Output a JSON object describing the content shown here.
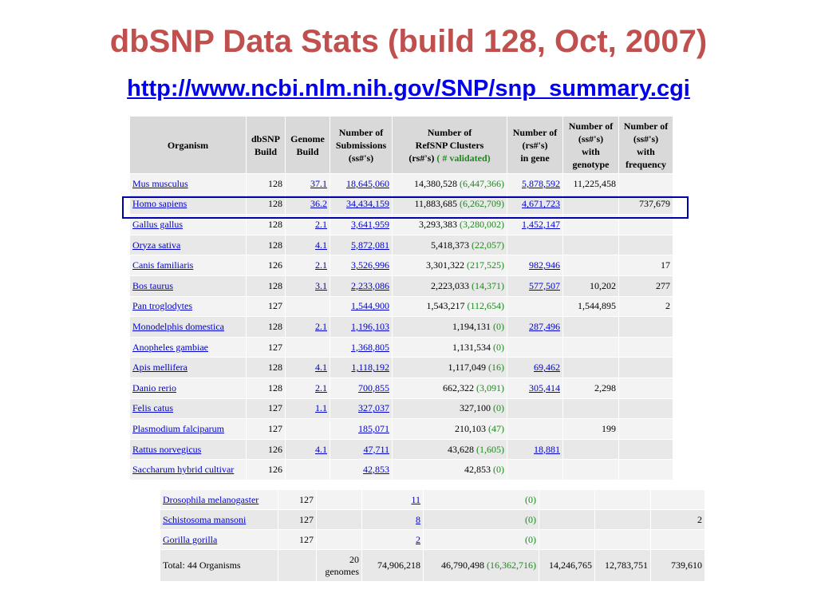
{
  "title": "dbSNP Data Stats (build 128, Oct, 2007)",
  "url": "http://www.ncbi.nlm.nih.gov/SNP/snp_summary.cgi",
  "table": {
    "header": [
      "Organism",
      "dbSNP\nBuild",
      "Genome\nBuild",
      "Number of\nSubmissions\n(ss#'s)",
      "Number of\nRefSNP Clusters\n(rs#'s)",
      "( # validated)",
      "Number of\n(rs#'s)\nin gene",
      "Number of\n(ss#'s)\nwith\ngenotype",
      "Number of\n(ss#'s)\nwith\nfrequency"
    ],
    "rows": [
      [
        "Mus musculus",
        "128",
        "37.1",
        "18,645,060",
        "14,380,528",
        "(6,447,366)",
        "5,878,592",
        "11,225,458",
        null
      ],
      [
        "Homo sapiens",
        "128",
        "36.2",
        "34,434,159",
        "11,883,685",
        "(6,262,709)",
        "4,671,723",
        null,
        "737,679"
      ],
      [
        "Gallus gallus",
        "128",
        "2.1",
        "3,641,959",
        "3,293,383",
        "(3,280,002)",
        "1,452,147",
        null,
        null
      ],
      [
        "Oryza sativa",
        "128",
        "4.1",
        "5,872,081",
        "5,418,373",
        "(22,057)",
        null,
        null,
        null
      ],
      [
        "Canis familiaris",
        "126",
        "2.1",
        "3,526,996",
        "3,301,322",
        "(217,525)",
        "982,946",
        null,
        "17"
      ],
      [
        "Bos taurus",
        "128",
        "3.1",
        "2,233,086",
        "2,223,033",
        "(14,371)",
        "577,507",
        "10,202",
        "277"
      ],
      [
        "Pan troglodytes",
        "127",
        null,
        "1,544,900",
        "1,543,217",
        "(112,654)",
        null,
        "1,544,895",
        "2"
      ],
      [
        "Monodelphis domestica",
        "128",
        "2.1",
        "1,196,103",
        "1,194,131",
        "(0)",
        "287,496",
        null,
        null
      ],
      [
        "Anopheles gambiae",
        "127",
        null,
        "1,368,805",
        "1,131,534",
        "(0)",
        null,
        null,
        null
      ],
      [
        "Apis mellifera",
        "128",
        "4.1",
        "1,118,192",
        "1,117,049",
        "(16)",
        "69,462",
        null,
        null
      ],
      [
        "Danio rerio",
        "128",
        "2.1",
        "700,855",
        "662,322",
        "(3,091)",
        "305,414",
        "2,298",
        null
      ],
      [
        "Felis catus",
        "127",
        "1.1",
        "327,037",
        "327,100",
        "(0)",
        null,
        null,
        null
      ],
      [
        "Plasmodium falciparum",
        "127",
        null,
        "185,071",
        "210,103",
        "(47)",
        null,
        "199",
        null
      ],
      [
        "Rattus norvegicus",
        "126",
        "4.1",
        "47,711",
        "43,628",
        "(1,605)",
        "18,881",
        null,
        null
      ],
      [
        "Saccharum hybrid cultivar",
        "126",
        null,
        "42,853",
        "42,853",
        "(0)",
        null,
        null,
        null
      ]
    ]
  },
  "table2": {
    "rows": [
      [
        "Drosophila melanogaster",
        "127",
        null,
        "11",
        null,
        "(0)",
        null,
        null,
        null
      ],
      [
        "Schistosoma mansoni",
        "127",
        null,
        "8",
        null,
        "(0)",
        null,
        null,
        "2"
      ],
      [
        "Gorilla gorilla",
        "127",
        null,
        "2",
        null,
        "(0)",
        null,
        null,
        null
      ],
      [
        "Total: 44 Organisms",
        null,
        "20\ngenomes",
        "74,906,218",
        "46,790,498",
        "(16,362,716)",
        "14,246,765",
        "12,783,751",
        "739,610"
      ]
    ]
  }
}
